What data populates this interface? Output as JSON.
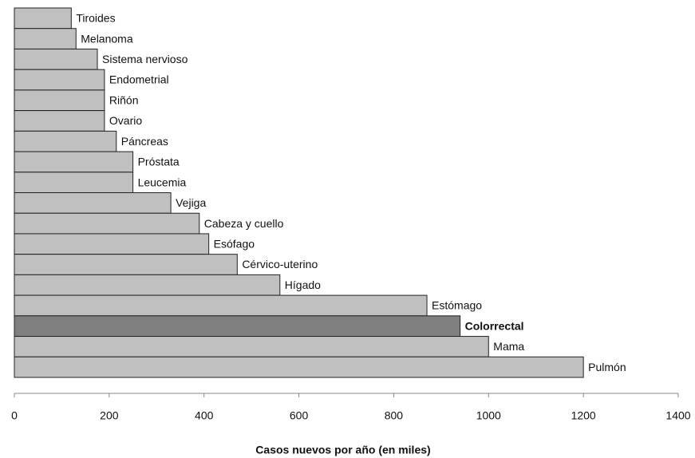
{
  "chart_data": {
    "type": "barh",
    "x_label": "Casos nuevos por año (en miles)",
    "categories": [
      "Tiroides",
      "Melanoma",
      "Sistema nervioso",
      "Endometrial",
      "Riñón",
      "Ovario",
      "Páncreas",
      "Próstata",
      "Leucemia",
      "Vejiga",
      "Cabeza y cuello",
      "Esófago",
      "Cérvico-uterino",
      "Hígado",
      "Estómago",
      "Colorrectal",
      "Mama",
      "Pulmón"
    ],
    "values": [
      120,
      130,
      175,
      190,
      190,
      190,
      215,
      250,
      250,
      330,
      390,
      410,
      470,
      560,
      870,
      940,
      1000,
      1200
    ],
    "color": "#c0c0c0",
    "highlight": {
      "index": 15,
      "color": "#808080",
      "bold": true
    },
    "xlim": [
      0,
      1400
    ],
    "xticks": [
      0,
      200,
      400,
      600,
      800,
      1000,
      1200,
      1400
    ],
    "grid": false
  }
}
